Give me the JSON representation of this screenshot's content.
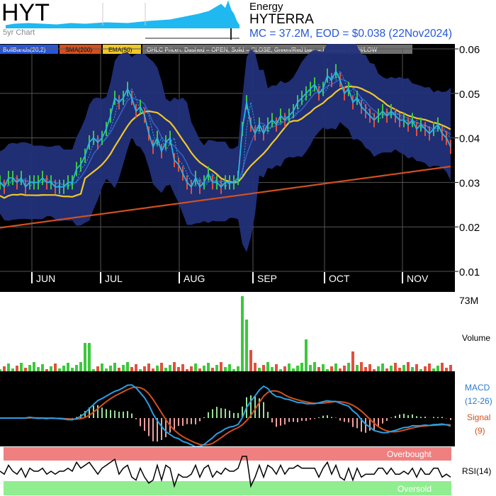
{
  "header": {
    "ticker": "HYT",
    "chart_span": "5yr Chart",
    "sector": "Energy",
    "company": "HYTERRA",
    "market_info": "MC = 37.2M, EOD = $0.038 (22Nov2024)"
  },
  "legend": {
    "bollinger": "BollBands(20,2)",
    "sma": "SMA(200)",
    "ema": "EMA(50)",
    "ohlc_note": "OHLC Prices: Dashed = OPEN, Solid = CLOSE, Green/Red bars = Intra-day HIGH/LOW"
  },
  "colors": {
    "background": "#000000",
    "bollinger_fill": "#22307a",
    "close_line": "#28b4e6",
    "sma": "#d2501e",
    "ema": "#f0c828",
    "up": "#3cc83c",
    "down": "#e0503c",
    "macd": "#28a0e6",
    "signal": "#d2501e",
    "overbought": "#f08080",
    "oversold": "#90ee90"
  },
  "chart_data": [
    {
      "type": "line",
      "title": "",
      "y_ticks": [
        "0.06",
        "0.05",
        "0.04",
        "0.03",
        "0.02",
        "0.01"
      ],
      "ylim": [
        0.01,
        0.06
      ],
      "month_labels": [
        "JUN",
        "JUL",
        "AUG",
        "SEP",
        "OCT",
        "NOV"
      ],
      "close_series": [
        [
          0,
          0.03
        ],
        [
          6,
          0.029
        ],
        [
          12,
          0.031
        ],
        [
          18,
          0.031
        ],
        [
          24,
          0.03
        ],
        [
          30,
          0.031
        ],
        [
          36,
          0.029
        ],
        [
          42,
          0.03
        ],
        [
          48,
          0.03
        ],
        [
          54,
          0.03
        ],
        [
          60,
          0.031
        ],
        [
          66,
          0.03
        ],
        [
          72,
          0.03
        ],
        [
          78,
          0.029
        ],
        [
          84,
          0.029
        ],
        [
          90,
          0.029
        ],
        [
          96,
          0.03
        ],
        [
          102,
          0.03
        ],
        [
          108,
          0.033
        ],
        [
          114,
          0.034
        ],
        [
          120,
          0.036
        ],
        [
          126,
          0.039
        ],
        [
          132,
          0.04
        ],
        [
          138,
          0.039
        ],
        [
          144,
          0.04
        ],
        [
          150,
          0.042
        ],
        [
          156,
          0.045
        ],
        [
          162,
          0.049
        ],
        [
          168,
          0.048
        ],
        [
          174,
          0.049
        ],
        [
          180,
          0.051
        ],
        [
          186,
          0.049
        ],
        [
          192,
          0.046
        ],
        [
          198,
          0.047
        ],
        [
          204,
          0.045
        ],
        [
          210,
          0.041
        ],
        [
          216,
          0.038
        ],
        [
          222,
          0.04
        ],
        [
          228,
          0.037
        ],
        [
          234,
          0.039
        ],
        [
          240,
          0.04
        ],
        [
          246,
          0.035
        ],
        [
          252,
          0.034
        ],
        [
          258,
          0.032
        ],
        [
          264,
          0.03
        ],
        [
          270,
          0.029
        ],
        [
          276,
          0.031
        ],
        [
          282,
          0.029
        ],
        [
          288,
          0.03
        ],
        [
          294,
          0.032
        ],
        [
          300,
          0.03
        ],
        [
          306,
          0.03
        ],
        [
          312,
          0.029
        ],
        [
          318,
          0.03
        ],
        [
          324,
          0.03
        ],
        [
          330,
          0.03
        ],
        [
          336,
          0.031
        ],
        [
          342,
          0.042
        ],
        [
          348,
          0.048
        ],
        [
          354,
          0.043
        ],
        [
          360,
          0.041
        ],
        [
          366,
          0.043
        ],
        [
          372,
          0.041
        ],
        [
          378,
          0.043
        ],
        [
          384,
          0.044
        ],
        [
          390,
          0.043
        ],
        [
          396,
          0.045
        ],
        [
          402,
          0.044
        ],
        [
          408,
          0.045
        ],
        [
          414,
          0.046
        ],
        [
          420,
          0.048
        ],
        [
          426,
          0.049
        ],
        [
          432,
          0.05
        ],
        [
          438,
          0.051
        ],
        [
          444,
          0.052
        ],
        [
          450,
          0.05
        ],
        [
          456,
          0.051
        ],
        [
          462,
          0.054
        ],
        [
          468,
          0.053
        ],
        [
          474,
          0.055
        ],
        [
          480,
          0.053
        ],
        [
          486,
          0.05
        ],
        [
          492,
          0.051
        ],
        [
          498,
          0.048
        ],
        [
          504,
          0.049
        ],
        [
          510,
          0.047
        ],
        [
          516,
          0.046
        ],
        [
          522,
          0.045
        ],
        [
          528,
          0.044
        ],
        [
          534,
          0.045
        ],
        [
          540,
          0.046
        ],
        [
          546,
          0.045
        ],
        [
          552,
          0.046
        ],
        [
          558,
          0.045
        ],
        [
          564,
          0.044
        ],
        [
          570,
          0.044
        ],
        [
          576,
          0.043
        ],
        [
          582,
          0.044
        ],
        [
          588,
          0.042
        ],
        [
          594,
          0.043
        ],
        [
          600,
          0.042
        ],
        [
          606,
          0.041
        ],
        [
          612,
          0.042
        ],
        [
          618,
          0.043
        ],
        [
          624,
          0.041
        ],
        [
          630,
          0.04
        ],
        [
          636,
          0.038
        ]
      ]
    },
    {
      "type": "bar",
      "title": "",
      "ylabel": "Volume",
      "y_max_label": "73M"
    },
    {
      "type": "line",
      "title": "",
      "series_labels": [
        "MACD",
        "(12-26)",
        "Signal",
        "(9)"
      ]
    },
    {
      "type": "line",
      "title": "",
      "ylabel": "RSI(14)",
      "bands": [
        "Overbought",
        "Oversold"
      ]
    }
  ]
}
